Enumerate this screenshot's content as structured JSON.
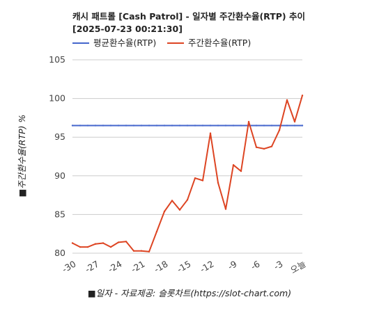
{
  "chart_data": {
    "type": "line",
    "title_line1": "캐시 패트롤 [Cash Patrol] - 일자별 주간환수율(RTP) 추이",
    "title_line2": "[2025-07-23 00:21:30]",
    "ylabel": "■주간환수율(RTP) %",
    "xlabel": "■일자 - 자료제공: 슬롯차트(https://slot-chart.com)",
    "ylim": [
      80,
      105
    ],
    "yticks": [
      "80",
      "85",
      "90",
      "95",
      "100",
      "105"
    ],
    "xticks": [
      "-30",
      "-27",
      "-24",
      "-21",
      "-18",
      "-15",
      "-12",
      "-9",
      "-6",
      "-3",
      "오늘"
    ],
    "grid": true,
    "legend_position": "top-left",
    "x": [
      -30,
      -29,
      -28,
      -27,
      -26,
      -25,
      -24,
      -23,
      -22,
      -21,
      -20,
      -19,
      -18,
      -17,
      -16,
      -15,
      -14,
      -13,
      -12,
      -11,
      -10,
      -9,
      -8,
      -7,
      -6,
      -5,
      -4,
      -3,
      -2,
      -1,
      0
    ],
    "series": [
      {
        "name": "평균환수율(RTP)",
        "color": "#4466cc",
        "values": [
          96.5,
          96.5,
          96.5,
          96.5,
          96.5,
          96.5,
          96.5,
          96.5,
          96.5,
          96.5,
          96.5,
          96.5,
          96.5,
          96.5,
          96.5,
          96.5,
          96.5,
          96.5,
          96.5,
          96.5,
          96.5,
          96.5,
          96.5,
          96.5,
          96.5,
          96.5,
          96.5,
          96.5,
          96.5,
          96.5,
          96.5
        ]
      },
      {
        "name": "주간환수율(RTP)",
        "color": "#dd4422",
        "values": [
          81.3,
          80.8,
          80.8,
          81.2,
          81.3,
          80.8,
          81.4,
          81.5,
          80.3,
          80.3,
          80.2,
          82.8,
          85.4,
          86.8,
          85.6,
          86.9,
          89.7,
          89.4,
          95.5,
          89.1,
          85.7,
          91.4,
          90.6,
          97.0,
          93.7,
          93.5,
          93.8,
          95.9,
          99.8,
          97.0,
          100.4
        ]
      }
    ]
  }
}
